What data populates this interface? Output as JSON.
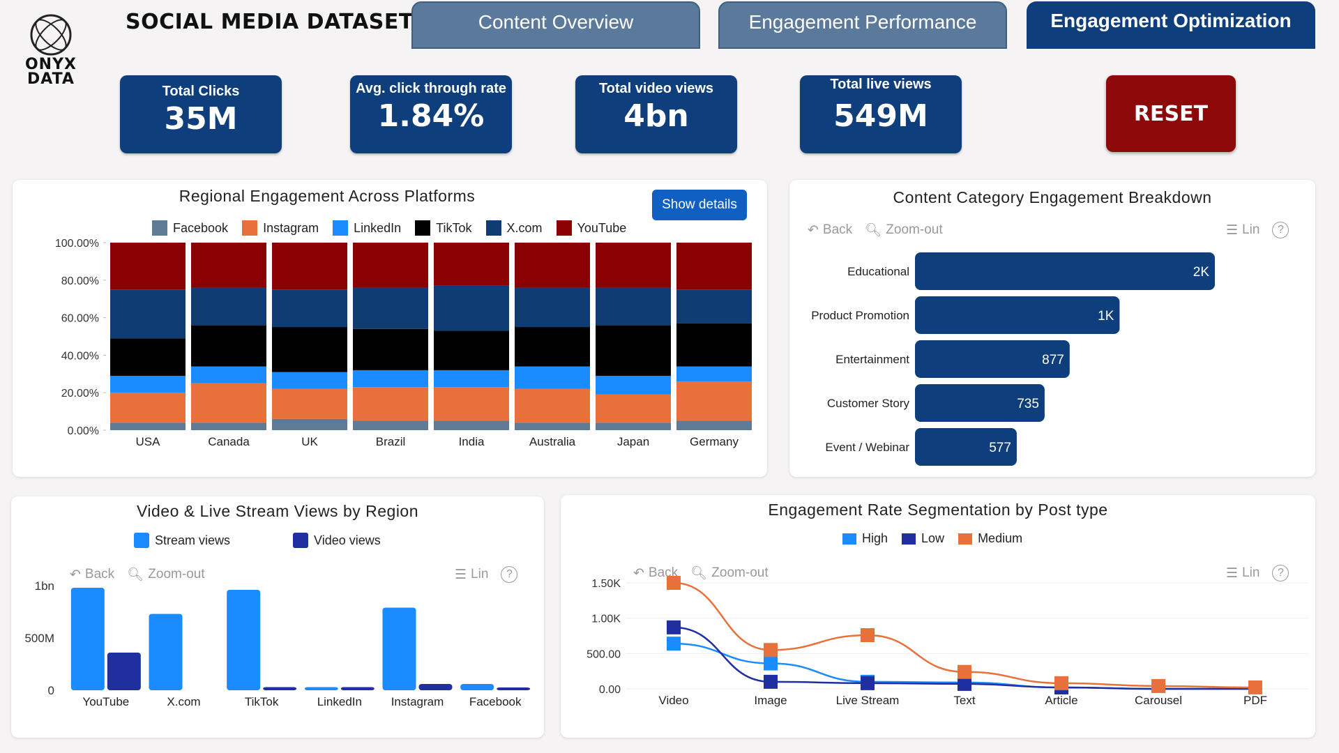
{
  "header": {
    "logo_text_line1": "ONYX",
    "logo_text_line2": "DATA",
    "title": "SOCIAL MEDIA DATASET"
  },
  "tabs": [
    {
      "label": "Content Overview",
      "active": false
    },
    {
      "label": "Engagement Performance",
      "active": false
    },
    {
      "label": "Engagement Optimization",
      "active": true
    }
  ],
  "kpis": [
    {
      "label": "Total Clicks",
      "value": "35M"
    },
    {
      "label": "Avg. click through rate",
      "value": "1.84%"
    },
    {
      "label": "Total video views",
      "value": "4bn"
    },
    {
      "label": "Total live views",
      "value": "549M"
    }
  ],
  "reset_label": "RESET",
  "toolbar": {
    "back": "Back",
    "zoom_out": "Zoom-out",
    "lin": "Lin",
    "help": "?"
  },
  "colors": {
    "navy": "#0e3f7c",
    "reset_red": "#8d0909",
    "facebook": "#5f7a95",
    "instagram": "#e8703a",
    "linkedin": "#1a8cff",
    "tiktok": "#000000",
    "xcom": "#0f3d73",
    "youtube": "#8b0000"
  },
  "regional": {
    "title": "Regional Engagement Across Platforms",
    "button": "Show details",
    "legend": [
      "Facebook",
      "Instagram",
      "LinkedIn",
      "TikTok",
      "X.com",
      "YouTube"
    ],
    "y_ticks": [
      "100.00%",
      "80.00%",
      "60.00%",
      "40.00%",
      "20.00%",
      "0.00%"
    ]
  },
  "category": {
    "title": "Content Category Engagement Breakdown"
  },
  "video": {
    "title": "Video & Live Stream Views by Region",
    "legend": [
      "Stream views",
      "Video views"
    ],
    "y_ticks": [
      "1bn",
      "500M",
      "0"
    ]
  },
  "segmentation": {
    "title": "Engagement Rate Segmentation by Post type",
    "legend": [
      "High",
      "Low",
      "Medium"
    ],
    "y_ticks": [
      "1.50K",
      "1.00K",
      "500.00",
      "0.00"
    ]
  },
  "chart_data": [
    {
      "type": "bar",
      "stacked": "100%",
      "title": "Regional Engagement Across Platforms",
      "categories": [
        "USA",
        "Canada",
        "UK",
        "Brazil",
        "India",
        "Australia",
        "Japan",
        "Germany"
      ],
      "ylim": [
        0,
        100
      ],
      "series": [
        {
          "name": "Facebook",
          "values": [
            4,
            4,
            6,
            5,
            5,
            4,
            4,
            5
          ]
        },
        {
          "name": "Instagram",
          "values": [
            16,
            21,
            16,
            18,
            18,
            18,
            15,
            21
          ]
        },
        {
          "name": "LinkedIn",
          "values": [
            9,
            9,
            9,
            9,
            9,
            12,
            10,
            8
          ]
        },
        {
          "name": "TikTok",
          "values": [
            20,
            22,
            24,
            22,
            21,
            21,
            27,
            23
          ]
        },
        {
          "name": "X.com",
          "values": [
            26,
            20,
            20,
            22,
            24,
            21,
            20,
            18
          ]
        },
        {
          "name": "YouTube",
          "values": [
            25,
            24,
            25,
            24,
            23,
            24,
            24,
            25
          ]
        }
      ]
    },
    {
      "type": "bar",
      "orientation": "horizontal",
      "title": "Content Category Engagement Breakdown",
      "categories": [
        "Educational",
        "Product Promotion",
        "Entertainment",
        "Customer Story",
        "Event / Webinar"
      ],
      "values": [
        1700,
        1160,
        877,
        735,
        577
      ],
      "data_labels": [
        "2K",
        "1K",
        "877",
        "735",
        "577"
      ]
    },
    {
      "type": "bar",
      "title": "Video & Live Stream Views by Region",
      "categories": [
        "YouTube",
        "X.com",
        "TikTok",
        "LinkedIn",
        "Instagram",
        "Facebook"
      ],
      "ylim": [
        0,
        1000000000
      ],
      "series": [
        {
          "name": "Stream views",
          "values": [
            980000000,
            730000000,
            960000000,
            30000000,
            790000000,
            60000000
          ]
        },
        {
          "name": "Video views",
          "values": [
            360000000,
            0,
            30000000,
            30000000,
            60000000,
            15000000
          ]
        }
      ]
    },
    {
      "type": "line",
      "title": "Engagement Rate Segmentation by Post type",
      "categories": [
        "Video",
        "Image",
        "Live Stream",
        "Text",
        "Article",
        "Carousel",
        "PDF"
      ],
      "ylim": [
        0,
        1500
      ],
      "series": [
        {
          "name": "High",
          "values": [
            640,
            360,
            100,
            90,
            20,
            0,
            0
          ]
        },
        {
          "name": "Low",
          "values": [
            870,
            100,
            80,
            70,
            20,
            0,
            0
          ]
        },
        {
          "name": "Medium",
          "values": [
            1500,
            550,
            760,
            240,
            80,
            40,
            20
          ]
        }
      ]
    }
  ]
}
